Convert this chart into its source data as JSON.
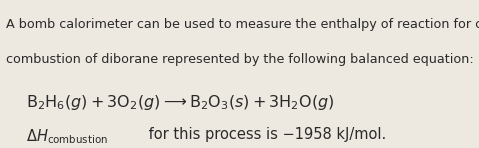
{
  "background_color": "#ede8e0",
  "text_line1": "A bomb calorimeter can be used to measure the enthalpy of reaction for combustions, such as the",
  "text_line2": "combustion of diborane represented by the following balanced equation:",
  "font_color": "#2a2a2a",
  "body_fontsize": 9.2,
  "equation_fontsize": 11.5,
  "dh_fontsize": 10.5,
  "dh_sub_fontsize": 6.8,
  "figsize": [
    4.79,
    1.48
  ],
  "dpi": 100
}
